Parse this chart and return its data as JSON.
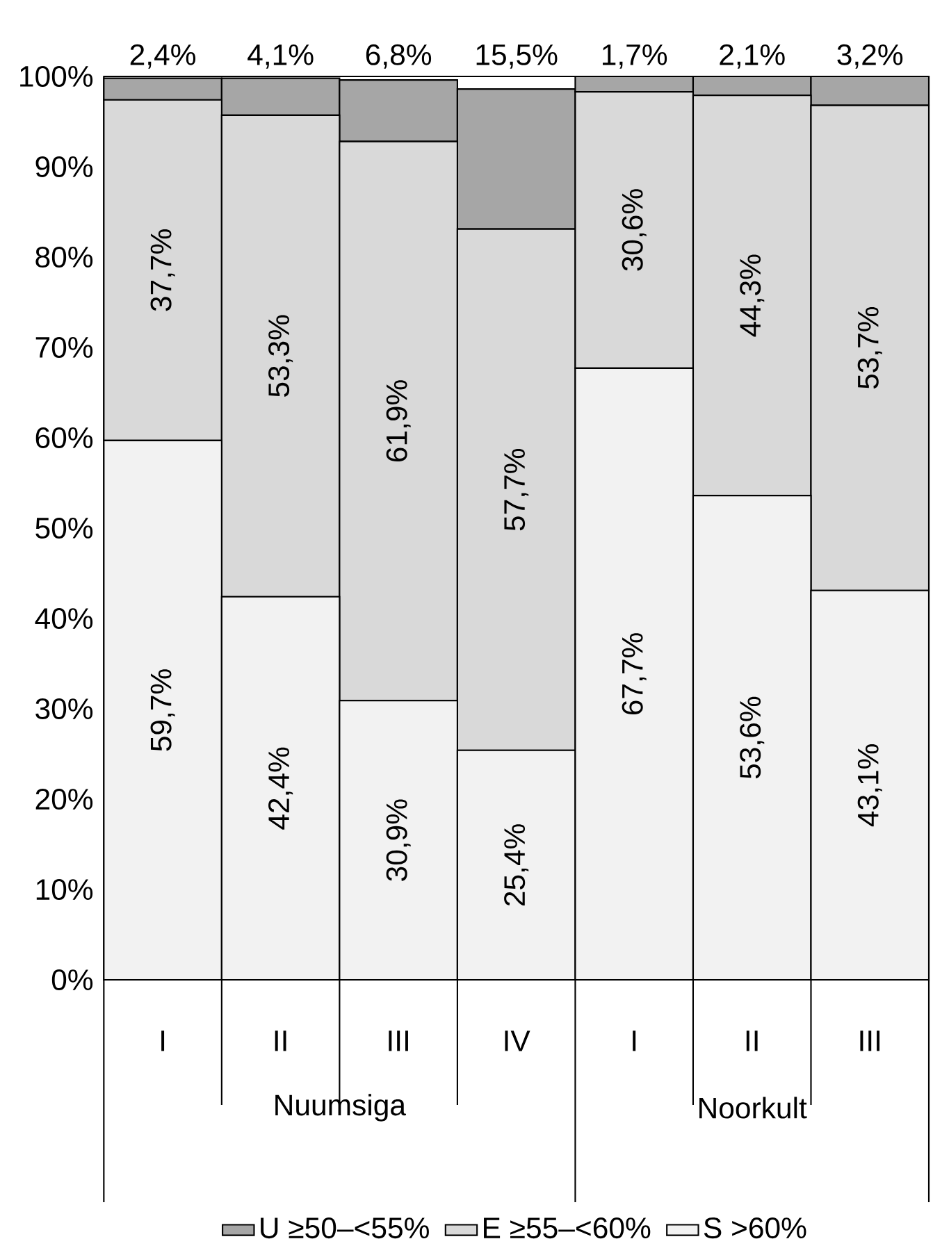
{
  "chart_data": {
    "type": "bar",
    "stacked": true,
    "categories": [
      "I",
      "II",
      "III",
      "IV",
      "I",
      "II",
      "III"
    ],
    "series": [
      {
        "name": "S >60%",
        "color": "#f2f2f2",
        "values": [
          59.7,
          42.4,
          30.9,
          25.4,
          67.7,
          53.6,
          43.1
        ],
        "value_labels": [
          "59,7%",
          "42,4%",
          "30,9%",
          "25,4%",
          "67,7%",
          "53,6%",
          "43,1%"
        ]
      },
      {
        "name": "E ≥55–<60%",
        "color": "#d9d9d9",
        "values": [
          37.7,
          53.3,
          61.9,
          57.7,
          30.6,
          44.3,
          53.7
        ],
        "value_labels": [
          "37,7%",
          "53,3%",
          "61,9%",
          "57,7%",
          "30,6%",
          "44,3%",
          "53,7%"
        ]
      },
      {
        "name": "U ≥50–<55%",
        "color": "#a6a6a6",
        "values": [
          2.4,
          4.1,
          6.8,
          15.5,
          1.7,
          2.1,
          3.2
        ],
        "value_labels": [
          "2,4%",
          "4,1%",
          "6,8%",
          "15,5%",
          "1,7%",
          "2,1%",
          "3,2%"
        ]
      }
    ],
    "ylim": [
      0,
      100
    ],
    "yticks": [
      {
        "value": 0,
        "label": "0%"
      },
      {
        "value": 10,
        "label": "10%"
      },
      {
        "value": 20,
        "label": "20%"
      },
      {
        "value": 30,
        "label": "30%"
      },
      {
        "value": 40,
        "label": "40%"
      },
      {
        "value": 50,
        "label": "50%"
      },
      {
        "value": 60,
        "label": "60%"
      },
      {
        "value": 70,
        "label": "70%"
      },
      {
        "value": 80,
        "label": "80%"
      },
      {
        "value": 90,
        "label": "90%"
      },
      {
        "value": 100,
        "label": "100%"
      }
    ],
    "legend": "bottom",
    "annotations": [
      "Nuumsiga",
      "Noorkult"
    ]
  }
}
